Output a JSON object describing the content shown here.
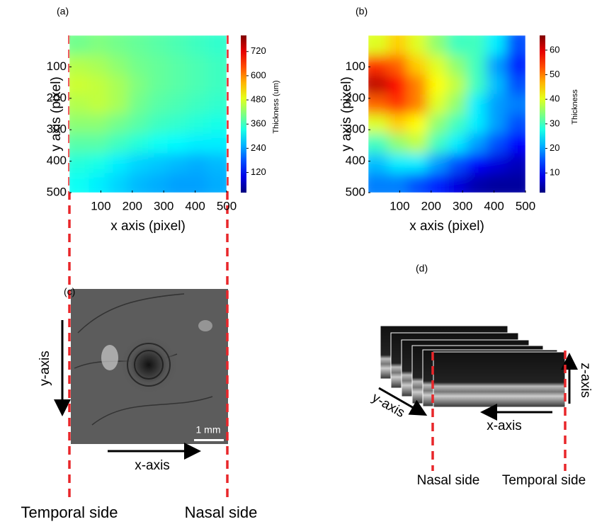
{
  "chart_data": [
    {
      "type": "heatmap",
      "label": "(a)",
      "xlabel": "x axis (pixel)",
      "ylabel": "y axis (pixel)",
      "xlim": [
        0,
        500
      ],
      "ylim": [
        500,
        0
      ],
      "xticks": [
        100,
        200,
        300,
        400,
        500
      ],
      "yticks": [
        100,
        200,
        300,
        400,
        500
      ],
      "colormap": "jet",
      "colorbar": {
        "label": "Thickness (um)",
        "lim": [
          20,
          800
        ],
        "ticks": [
          120,
          240,
          360,
          480,
          600,
          720
        ]
      },
      "values": [
        [
          400,
          410,
          400,
          390,
          380,
          370,
          360,
          350
        ],
        [
          450,
          440,
          420,
          400,
          390,
          380,
          370,
          360
        ],
        [
          470,
          460,
          440,
          410,
          390,
          380,
          370,
          360
        ],
        [
          450,
          460,
          440,
          400,
          380,
          370,
          360,
          350
        ],
        [
          420,
          420,
          400,
          380,
          360,
          350,
          340,
          330
        ],
        [
          380,
          380,
          360,
          340,
          320,
          310,
          300,
          300
        ],
        [
          340,
          330,
          300,
          280,
          270,
          260,
          250,
          260
        ],
        [
          320,
          300,
          280,
          260,
          250,
          240,
          240,
          250
        ]
      ]
    },
    {
      "type": "heatmap",
      "label": "(b)",
      "xlabel": "x axis (pixel)",
      "ylabel": "y axis (pixel)",
      "xlim": [
        0,
        500
      ],
      "ylim": [
        500,
        0
      ],
      "xticks": [
        100,
        200,
        300,
        400,
        500
      ],
      "yticks": [
        100,
        200,
        300,
        400,
        500
      ],
      "colormap": "jet",
      "colorbar": {
        "label": "Thickness",
        "lim": [
          2,
          66
        ],
        "ticks": [
          10,
          20,
          30,
          40,
          50,
          60
        ]
      },
      "values": [
        [
          40,
          45,
          40,
          35,
          30,
          30,
          25,
          15
        ],
        [
          55,
          52,
          45,
          40,
          35,
          30,
          20,
          12
        ],
        [
          62,
          58,
          50,
          42,
          38,
          30,
          22,
          15
        ],
        [
          52,
          55,
          50,
          40,
          35,
          25,
          20,
          18
        ],
        [
          40,
          45,
          42,
          35,
          30,
          25,
          20,
          15
        ],
        [
          30,
          35,
          38,
          30,
          25,
          20,
          15,
          10
        ],
        [
          22,
          25,
          25,
          20,
          15,
          10,
          8,
          6
        ],
        [
          18,
          18,
          15,
          12,
          8,
          5,
          4,
          4
        ]
      ]
    }
  ],
  "panels": {
    "c": {
      "label": "(c)",
      "y_axis": "y-axis",
      "x_axis": "x-axis",
      "scale_bar": "1 mm"
    },
    "d": {
      "label": "(d)",
      "y_axis": "y-axis",
      "x_axis": "x-axis",
      "z_axis": "z-axis",
      "left_side": "Nasal side",
      "right_side": "Temporal side"
    }
  },
  "bottom_labels": {
    "left": "Temporal side",
    "right": "Nasal side"
  }
}
